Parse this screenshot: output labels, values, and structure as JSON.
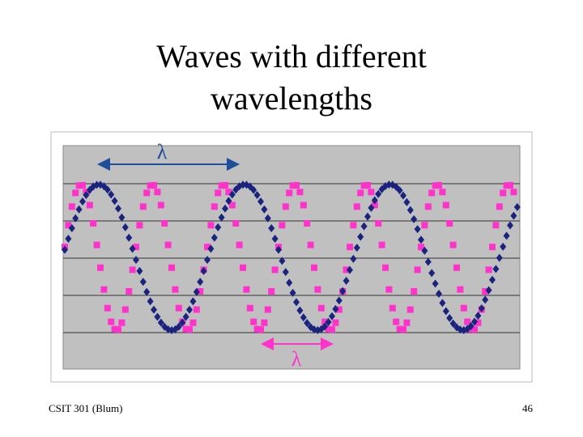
{
  "header": {
    "title": "Waves with different wavelengths"
  },
  "figure": {
    "long_wave_label": "λ",
    "short_wave_label": "λ"
  },
  "footer": {
    "course": "CSIT 301 (Blum)",
    "page": "46"
  }
}
